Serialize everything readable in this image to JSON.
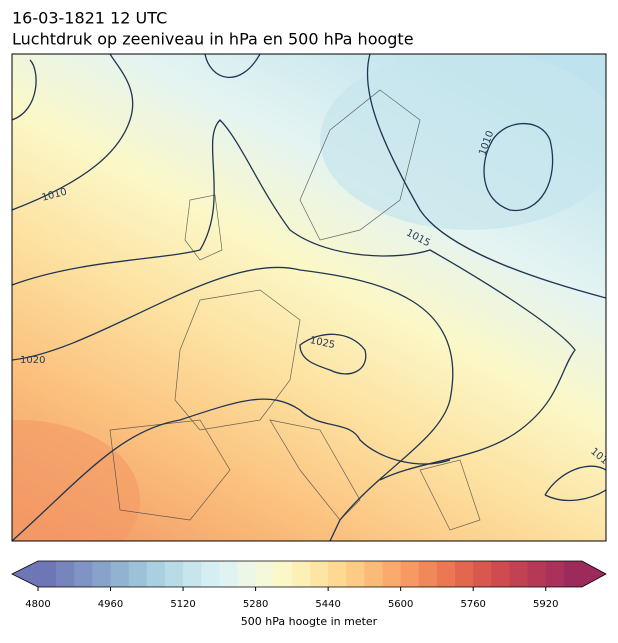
{
  "header": {
    "date": "16-03-1821 12 UTC",
    "title": "Luchtdruk op zeeniveau in hPa en 500 hPa hoogte"
  },
  "map": {
    "contour_labels": [
      "1010",
      "1015",
      "1010",
      "1020",
      "1025",
      "101"
    ]
  },
  "colorbar": {
    "label": "500 hPa hoogte in meter",
    "lim": [
      4800,
      6000
    ],
    "ticks": [
      4800,
      4960,
      5120,
      5280,
      5440,
      5600,
      5760,
      5920
    ],
    "colors": [
      "#6f76b6",
      "#7785bd",
      "#7f94c4",
      "#88a3cb",
      "#92b2d2",
      "#9dc1d9",
      "#aacfe0",
      "#b8dbe7",
      "#c6e5ed",
      "#d4eef2",
      "#e1f3f1",
      "#ecf7e7",
      "#f5f9d9",
      "#fbf8c8",
      "#fdf0b6",
      "#fde6a4",
      "#fdd994",
      "#fccb85",
      "#fbbb78",
      "#f9aa6c",
      "#f69962",
      "#f1885a",
      "#eb7753",
      "#e3674f",
      "#d9584d",
      "#ce4b4f",
      "#c24152",
      "#b53856",
      "#a9315a",
      "#9c2b5c"
    ]
  }
}
